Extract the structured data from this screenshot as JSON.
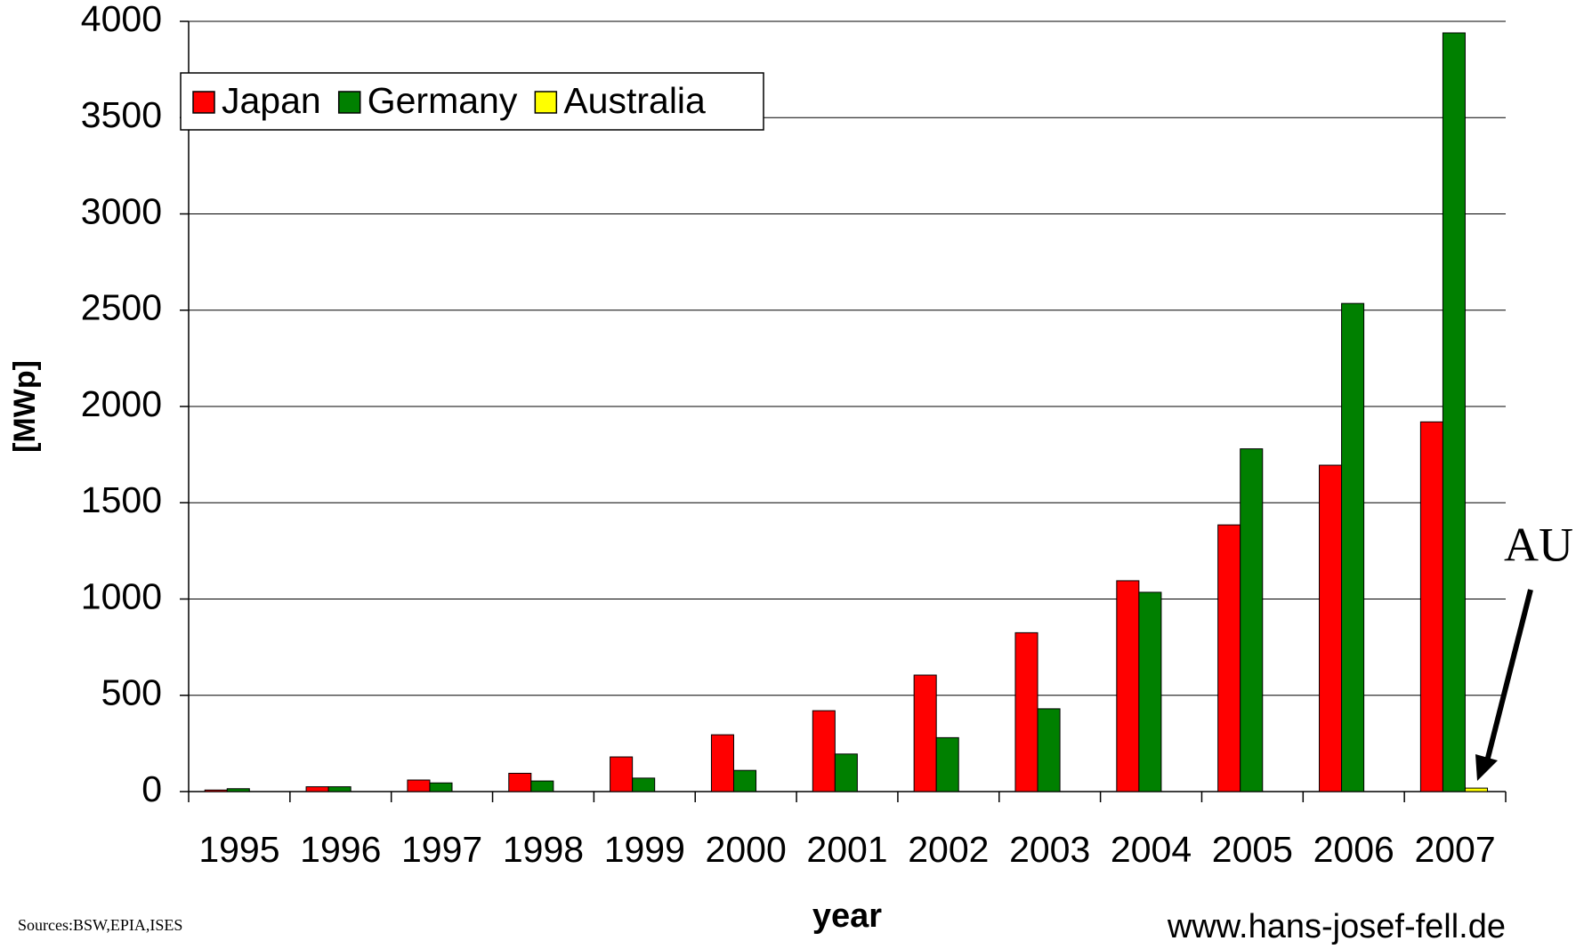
{
  "chart_data": {
    "type": "bar",
    "y_label": "[MWp]",
    "x_label": "year",
    "annotations": {
      "au": "AU",
      "sources": "Sources:BSW,EPIA,ISES",
      "website": "www.hans-josef-fell.de"
    },
    "categories": [
      "1995",
      "1996",
      "1997",
      "1998",
      "1999",
      "2000",
      "2001",
      "2002",
      "2003",
      "2004",
      "2005",
      "2006",
      "2007"
    ],
    "series": [
      {
        "name": "Japan",
        "color": "#ff0000",
        "values": [
          8,
          25,
          60,
          95,
          180,
          295,
          420,
          605,
          825,
          1095,
          1385,
          1695,
          1920
        ]
      },
      {
        "name": "Germany",
        "color": "#008000",
        "values": [
          15,
          25,
          45,
          55,
          70,
          110,
          195,
          280,
          430,
          1035,
          1780,
          2535,
          3940
        ]
      },
      {
        "name": "Australia",
        "color": "#ffff00",
        "values": [
          null,
          null,
          null,
          null,
          null,
          null,
          null,
          null,
          null,
          null,
          null,
          null,
          18
        ]
      }
    ],
    "ylim": [
      0,
      4000
    ],
    "yticks": [
      0,
      500,
      1000,
      1500,
      2000,
      2500,
      3000,
      3500,
      4000
    ],
    "grid": true,
    "legend": "top-left"
  }
}
